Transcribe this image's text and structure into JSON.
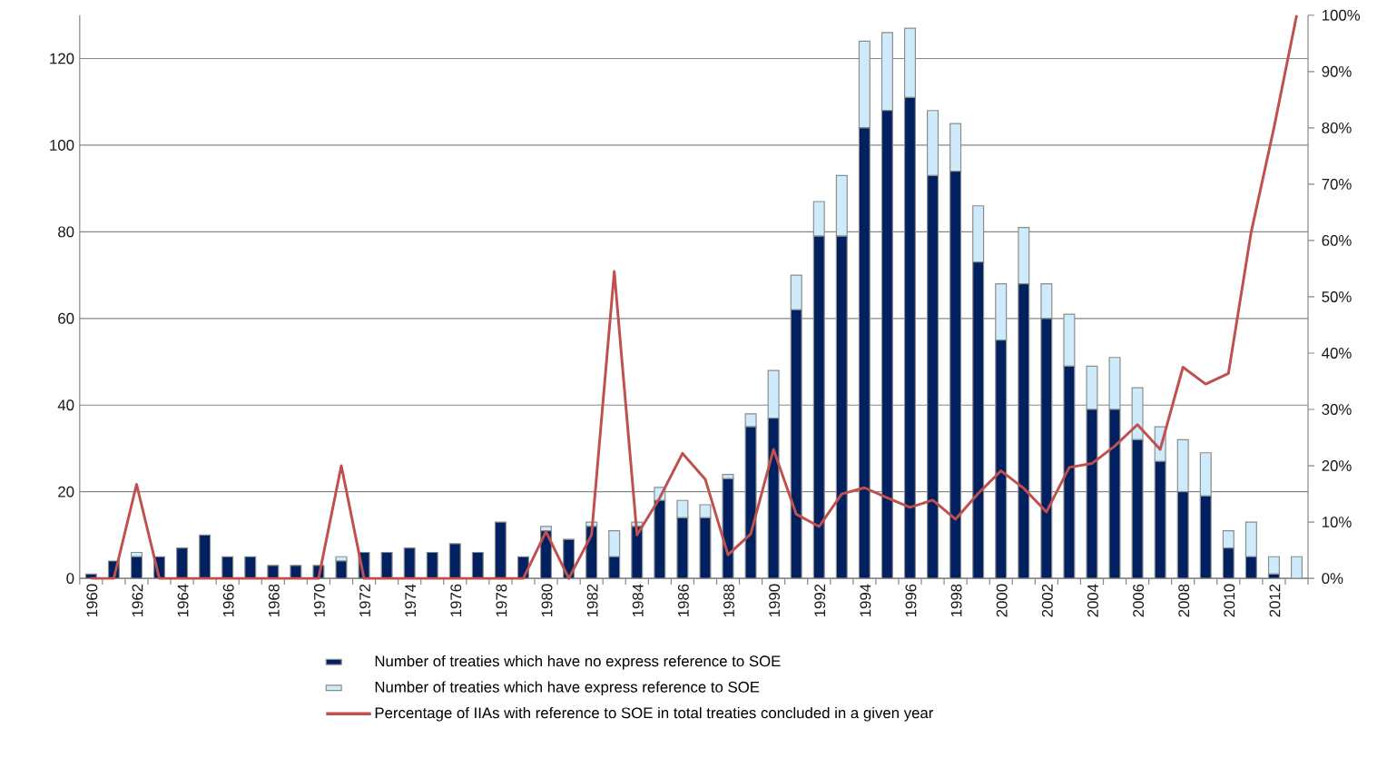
{
  "chart_data": {
    "type": "bar",
    "stacked": true,
    "categories": [
      "1960",
      null,
      "1962",
      null,
      "1964",
      null,
      "1966",
      null,
      "1968",
      null,
      "1970",
      null,
      "1972",
      null,
      "1974",
      null,
      "1976",
      null,
      "1978",
      null,
      "1980",
      null,
      "1982",
      null,
      "1984",
      null,
      "1986",
      null,
      "1988",
      null,
      "1990",
      null,
      "1992",
      null,
      "1994",
      null,
      "1996",
      null,
      "1998",
      null,
      "2000",
      null,
      "2002",
      null,
      "2004",
      null,
      "2006",
      null,
      "2008",
      null,
      "2010",
      null,
      "2012",
      null
    ],
    "series": [
      {
        "name": "Number of treaties which have no express reference to SOE",
        "color": "#002060",
        "values": [
          1,
          4,
          5,
          5,
          7,
          10,
          5,
          5,
          3,
          3,
          3,
          4,
          6,
          6,
          7,
          6,
          8,
          6,
          13,
          5,
          11,
          9,
          12,
          5,
          12,
          18,
          14,
          14,
          23,
          35,
          37,
          62,
          79,
          79,
          104,
          108,
          111,
          93,
          94,
          73,
          55,
          68,
          60,
          49,
          39,
          39,
          32,
          27,
          20,
          19,
          7,
          5,
          1,
          0
        ]
      },
      {
        "name": "Number of treaties which have express reference to SOE",
        "color": "#cdebfb",
        "values": [
          0,
          0,
          1,
          0,
          0,
          0,
          0,
          0,
          0,
          0,
          0,
          1,
          0,
          0,
          0,
          0,
          0,
          0,
          0,
          0,
          1,
          0,
          1,
          6,
          1,
          3,
          4,
          3,
          1,
          3,
          11,
          8,
          8,
          14,
          20,
          18,
          16,
          15,
          11,
          13,
          13,
          13,
          8,
          12,
          10,
          12,
          12,
          8,
          12,
          10,
          4,
          8,
          4,
          5
        ]
      },
      {
        "name": "Percentage of IIAs with reference to SOE in total treaties concluded in a given year",
        "type": "line",
        "axis": "y2",
        "color": "#c0504d",
        "values": [
          0,
          0,
          16.7,
          0,
          0,
          0,
          0,
          0,
          0,
          0,
          0,
          20,
          0,
          0,
          0,
          0,
          0,
          0,
          0,
          0,
          8.3,
          0,
          7.7,
          54.5,
          7.7,
          14.3,
          22.2,
          17.6,
          4.2,
          7.9,
          22.9,
          11.4,
          9.2,
          15,
          16.1,
          14.3,
          12.6,
          13.9,
          10.5,
          15.1,
          19.1,
          16,
          11.8,
          19.7,
          20.4,
          23.5,
          27.3,
          22.9,
          37.5,
          34.5,
          36.4,
          61.5,
          80,
          100
        ]
      }
    ],
    "ylim": [
      0,
      130
    ],
    "yticks": [
      0,
      20,
      40,
      60,
      80,
      100,
      120
    ],
    "y2lim": [
      0,
      100
    ],
    "y2ticks": [
      {
        "value": 0,
        "label": "0%"
      },
      {
        "value": 10,
        "label": "10%"
      },
      {
        "value": 20,
        "label": "20%"
      },
      {
        "value": 30,
        "label": "30%"
      },
      {
        "value": 40,
        "label": "40%"
      },
      {
        "value": 50,
        "label": "50%"
      },
      {
        "value": 60,
        "label": "60%"
      },
      {
        "value": 70,
        "label": "70%"
      },
      {
        "value": 80,
        "label": "80%"
      },
      {
        "value": 90,
        "label": "90%"
      },
      {
        "value": 100,
        "label": "100%"
      }
    ],
    "grid": "y",
    "legend": "bottom"
  }
}
